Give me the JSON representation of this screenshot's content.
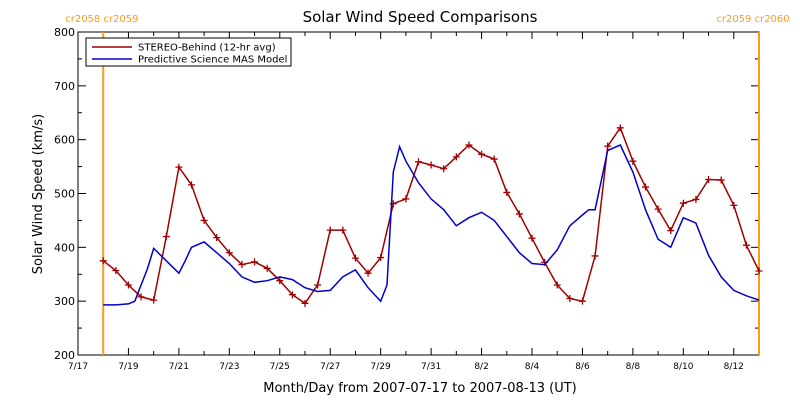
{
  "chart_data": {
    "type": "line",
    "title": "Solar Wind Speed Comparisons",
    "xlabel": "Month/Day from 2007-07-17 to 2007-08-13 (UT)",
    "ylabel": "Solar Wind Speed (km/s)",
    "xlim": [
      "2007-07-17",
      "2007-08-13"
    ],
    "ylim": [
      200,
      800
    ],
    "y_ticks": [
      200,
      300,
      400,
      500,
      600,
      700,
      800
    ],
    "x_ticks": [
      {
        "date": "2007-07-17",
        "label": "7/17"
      },
      {
        "date": "2007-07-19",
        "label": "7/19"
      },
      {
        "date": "2007-07-21",
        "label": "7/21"
      },
      {
        "date": "2007-07-23",
        "label": "7/23"
      },
      {
        "date": "2007-07-25",
        "label": "7/25"
      },
      {
        "date": "2007-07-27",
        "label": "7/27"
      },
      {
        "date": "2007-07-29",
        "label": "7/29"
      },
      {
        "date": "2007-07-31",
        "label": "7/31"
      },
      {
        "date": "2007-08-02",
        "label": "8/2"
      },
      {
        "date": "2007-08-04",
        "label": "8/4"
      },
      {
        "date": "2007-08-06",
        "label": "8/6"
      },
      {
        "date": "2007-08-08",
        "label": "8/8"
      },
      {
        "date": "2007-08-10",
        "label": "8/10"
      },
      {
        "date": "2007-08-12",
        "label": "8/12"
      }
    ],
    "grid": false,
    "legend_position": "top-left",
    "carrington_markers": [
      {
        "date": "2007-07-18",
        "label": "cr2058 cr2059",
        "color": "#ff9a1a"
      },
      {
        "date": "2007-08-13",
        "label": "cr2059 cr2060",
        "color": "#ff9a1a"
      }
    ],
    "series": [
      {
        "name": "STEREO-Behind (12-hr avg)",
        "color": "#a00000",
        "marker": "plus",
        "x": [
          "2007-07-18 00:00",
          "2007-07-18 12:00",
          "2007-07-19 00:00",
          "2007-07-19 12:00",
          "2007-07-20 00:00",
          "2007-07-20 12:00",
          "2007-07-21 00:00",
          "2007-07-21 12:00",
          "2007-07-22 00:00",
          "2007-07-22 12:00",
          "2007-07-23 00:00",
          "2007-07-23 12:00",
          "2007-07-24 00:00",
          "2007-07-24 12:00",
          "2007-07-25 00:00",
          "2007-07-25 12:00",
          "2007-07-26 00:00",
          "2007-07-26 12:00",
          "2007-07-27 00:00",
          "2007-07-27 12:00",
          "2007-07-28 00:00",
          "2007-07-28 12:00",
          "2007-07-29 00:00",
          "2007-07-29 12:00",
          "2007-07-30 00:00",
          "2007-07-30 12:00",
          "2007-07-31 00:00",
          "2007-07-31 12:00",
          "2007-08-01 00:00",
          "2007-08-01 12:00",
          "2007-08-02 00:00",
          "2007-08-02 12:00",
          "2007-08-03 00:00",
          "2007-08-03 12:00",
          "2007-08-04 00:00",
          "2007-08-04 12:00",
          "2007-08-05 00:00",
          "2007-08-05 12:00",
          "2007-08-06 00:00",
          "2007-08-06 12:00",
          "2007-08-07 00:00",
          "2007-08-07 12:00",
          "2007-08-08 00:00",
          "2007-08-08 12:00",
          "2007-08-09 00:00",
          "2007-08-09 12:00",
          "2007-08-10 00:00",
          "2007-08-10 12:00",
          "2007-08-11 00:00",
          "2007-08-11 12:00",
          "2007-08-12 00:00",
          "2007-08-12 12:00",
          "2007-08-13 00:00"
        ],
        "y": [
          375,
          357,
          330,
          308,
          302,
          420,
          549,
          516,
          450,
          418,
          390,
          368,
          373,
          361,
          338,
          312,
          296,
          330,
          432,
          432,
          380,
          352,
          381,
          481,
          490,
          559,
          553,
          546,
          568,
          590,
          573,
          564,
          502,
          462,
          417,
          372,
          330,
          305,
          300,
          384,
          588,
          622,
          560,
          512,
          471,
          431,
          482,
          489,
          526,
          525,
          478,
          404,
          356
        ]
      },
      {
        "name": "Predictive Science MAS Model",
        "color": "#0000cc",
        "marker": "none",
        "x": [
          "2007-07-18 00:00",
          "2007-07-18 12:00",
          "2007-07-19 00:00",
          "2007-07-19 06:00",
          "2007-07-19 18:00",
          "2007-07-20 00:00",
          "2007-07-20 12:00",
          "2007-07-21 00:00",
          "2007-07-21 06:00",
          "2007-07-21 12:00",
          "2007-07-22 00:00",
          "2007-07-22 12:00",
          "2007-07-23 00:00",
          "2007-07-23 12:00",
          "2007-07-24 00:00",
          "2007-07-24 12:00",
          "2007-07-25 00:00",
          "2007-07-25 12:00",
          "2007-07-26 00:00",
          "2007-07-26 12:00",
          "2007-07-27 00:00",
          "2007-07-27 12:00",
          "2007-07-28 00:00",
          "2007-07-28 12:00",
          "2007-07-29 00:00",
          "2007-07-29 06:00",
          "2007-07-29 12:00",
          "2007-07-29 18:00",
          "2007-07-30 00:00",
          "2007-07-30 12:00",
          "2007-07-31 00:00",
          "2007-07-31 12:00",
          "2007-08-01 00:00",
          "2007-08-01 12:00",
          "2007-08-02 00:00",
          "2007-08-02 12:00",
          "2007-08-03 00:00",
          "2007-08-03 12:00",
          "2007-08-04 00:00",
          "2007-08-04 12:00",
          "2007-08-05 00:00",
          "2007-08-05 12:00",
          "2007-08-06 00:00",
          "2007-08-06 06:00",
          "2007-08-06 12:00",
          "2007-08-07 00:00",
          "2007-08-07 12:00",
          "2007-08-08 00:00",
          "2007-08-08 12:00",
          "2007-08-09 00:00",
          "2007-08-09 12:00",
          "2007-08-10 00:00",
          "2007-08-10 12:00",
          "2007-08-11 00:00",
          "2007-08-11 12:00",
          "2007-08-12 00:00",
          "2007-08-12 12:00",
          "2007-08-13 00:00"
        ],
        "y": [
          293,
          293,
          295,
          300,
          360,
          398,
          375,
          352,
          375,
          400,
          410,
          390,
          370,
          345,
          335,
          338,
          345,
          340,
          325,
          318,
          320,
          345,
          358,
          325,
          300,
          330,
          540,
          587,
          560,
          520,
          490,
          470,
          440,
          455,
          465,
          450,
          420,
          390,
          370,
          368,
          395,
          440,
          460,
          470,
          470,
          580,
          590,
          540,
          470,
          415,
          400,
          455,
          445,
          385,
          345,
          320,
          310,
          302
        ]
      }
    ]
  }
}
